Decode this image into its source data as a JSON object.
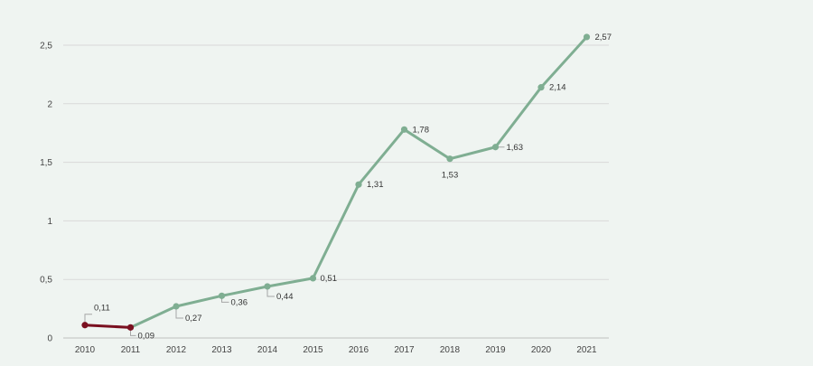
{
  "chart_data": {
    "type": "line",
    "title": "",
    "xlabel": "",
    "ylabel": "",
    "categories": [
      "2010",
      "2011",
      "2012",
      "2013",
      "2014",
      "2015",
      "2016",
      "2017",
      "2018",
      "2019",
      "2020",
      "2021"
    ],
    "ylim": [
      0,
      2.5
    ],
    "y_ticks": [
      "0",
      "0,5",
      "1",
      "1,5",
      "2",
      "2,5"
    ],
    "grid": true,
    "legend": "none",
    "series": [
      {
        "color": "#7fae92",
        "highlight_color": "#7a1020",
        "highlight_range": [
          "2010",
          "2011"
        ],
        "values": [
          0.11,
          0.09,
          0.27,
          0.36,
          0.44,
          0.51,
          1.31,
          1.78,
          1.53,
          1.63,
          2.14,
          2.57
        ],
        "labels": [
          "0,11",
          "0,09",
          "0,27",
          "0,36",
          "0,44",
          "0,51",
          "1,31",
          "1,78",
          "1,53",
          "1,63",
          "2,14",
          "2,57"
        ]
      }
    ]
  }
}
